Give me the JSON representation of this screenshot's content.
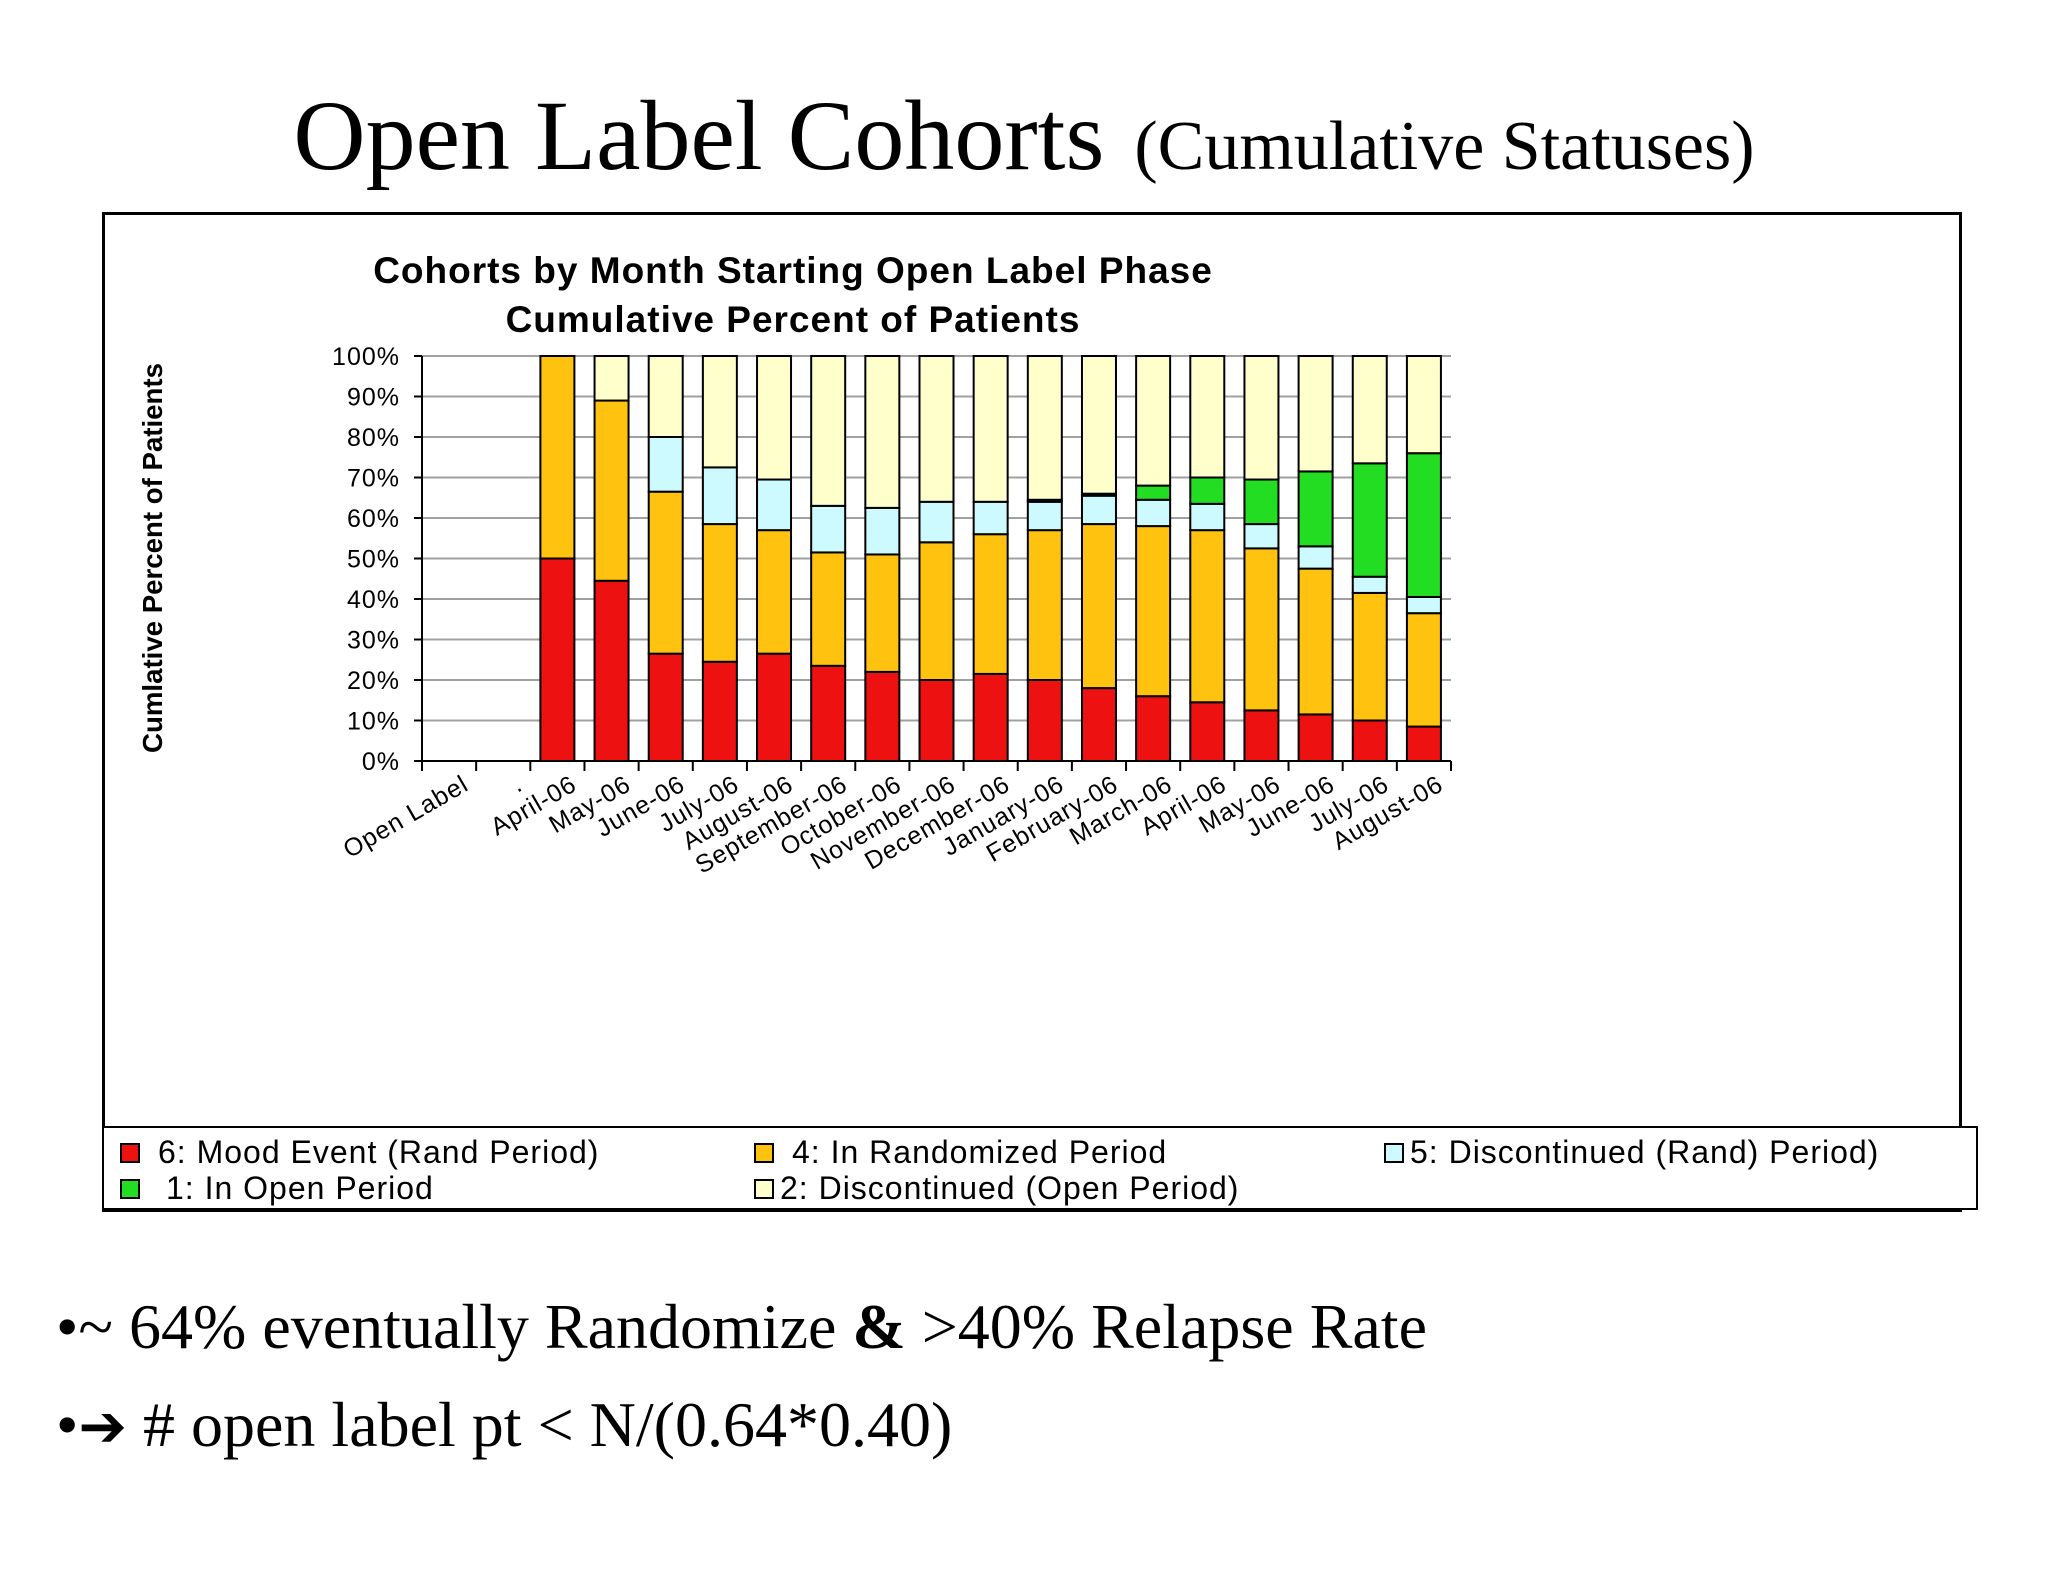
{
  "slide": {
    "title_main": "Open Label Cohorts",
    "title_sub": "(Cumulative Statuses)",
    "bullets": [
      {
        "bullet": "•",
        "parts": [
          {
            "text": "~ 64% eventually Randomize ",
            "bold": false
          },
          {
            "text": "&",
            "bold": true
          },
          {
            "text": " >40% Relapse Rate",
            "bold": false
          }
        ]
      },
      {
        "bullet": "•",
        "arrow": "➔",
        "parts": [
          {
            "text": " # open label pt < N/(0.64*0.40)",
            "bold": false
          }
        ]
      }
    ]
  },
  "chart_data": {
    "type": "bar",
    "stacked": true,
    "title": "Cohorts by Month Starting Open Label Phase",
    "subtitle": "Cumulative Percent of Patients",
    "xlabel": "",
    "ylabel": "Cumlative Percent of Patients",
    "ylim": [
      0,
      100
    ],
    "yticks": [
      "0%",
      "10%",
      "20%",
      "30%",
      "40%",
      "50%",
      "60%",
      "70%",
      "80%",
      "90%",
      "100%"
    ],
    "grid": true,
    "legend_position": "bottom",
    "categories": [
      "Open Label",
      ".",
      "April-06",
      "May-06",
      "June-06",
      "July-06",
      "August-06",
      "September-06",
      "October-06",
      "November-06",
      "December-06",
      "January-06",
      "February-06",
      "March-06",
      "April-06",
      "May-06",
      "June-06",
      "July-06",
      "August-06"
    ],
    "series": [
      {
        "name": "6: Mood Event (Rand Period)",
        "color": "#ee1111",
        "values": [
          0,
          0,
          50,
          44.5,
          26.5,
          24.5,
          26.5,
          23.5,
          22,
          20,
          21.5,
          20,
          18,
          16,
          14.5,
          12.5,
          11.5,
          10,
          8.5
        ]
      },
      {
        "name": "4: In Randomized Period",
        "color": "#ffc20e",
        "values": [
          0,
          0,
          50,
          44.5,
          40,
          34,
          30.5,
          28,
          29,
          34,
          34.5,
          37,
          40.5,
          42,
          42.5,
          40,
          36,
          31.5,
          28
        ]
      },
      {
        "name": "5: Discontinued (Rand) Period)",
        "color": "#cdfafe",
        "values": [
          0,
          0,
          0,
          0,
          13.5,
          14,
          12.5,
          11.5,
          11.5,
          10,
          8,
          7,
          7,
          6.5,
          6.5,
          6,
          5.5,
          4,
          4
        ]
      },
      {
        "name": "1: In Open Period",
        "color": "#22dd22",
        "values": [
          0,
          0,
          0,
          0,
          0,
          0,
          0,
          0,
          0,
          0,
          0,
          0.5,
          0.5,
          3.5,
          6.5,
          11,
          18.5,
          28,
          35.5
        ]
      },
      {
        "name": "2: Discontinued (Open Period)",
        "color": "#ffffcc",
        "values": [
          0,
          0,
          0,
          11,
          20,
          27.5,
          30.5,
          37,
          37.5,
          36,
          36,
          35.5,
          34,
          32,
          30,
          30.5,
          28.5,
          26.5,
          24
        ]
      }
    ],
    "legend_rows": [
      [
        "6: Mood Event (Rand Period)",
        "4: In Randomized Period",
        "5: Discontinued (Rand) Period)"
      ],
      [
        "1: In Open Period",
        "2: Discontinued (Open Period)"
      ]
    ]
  }
}
